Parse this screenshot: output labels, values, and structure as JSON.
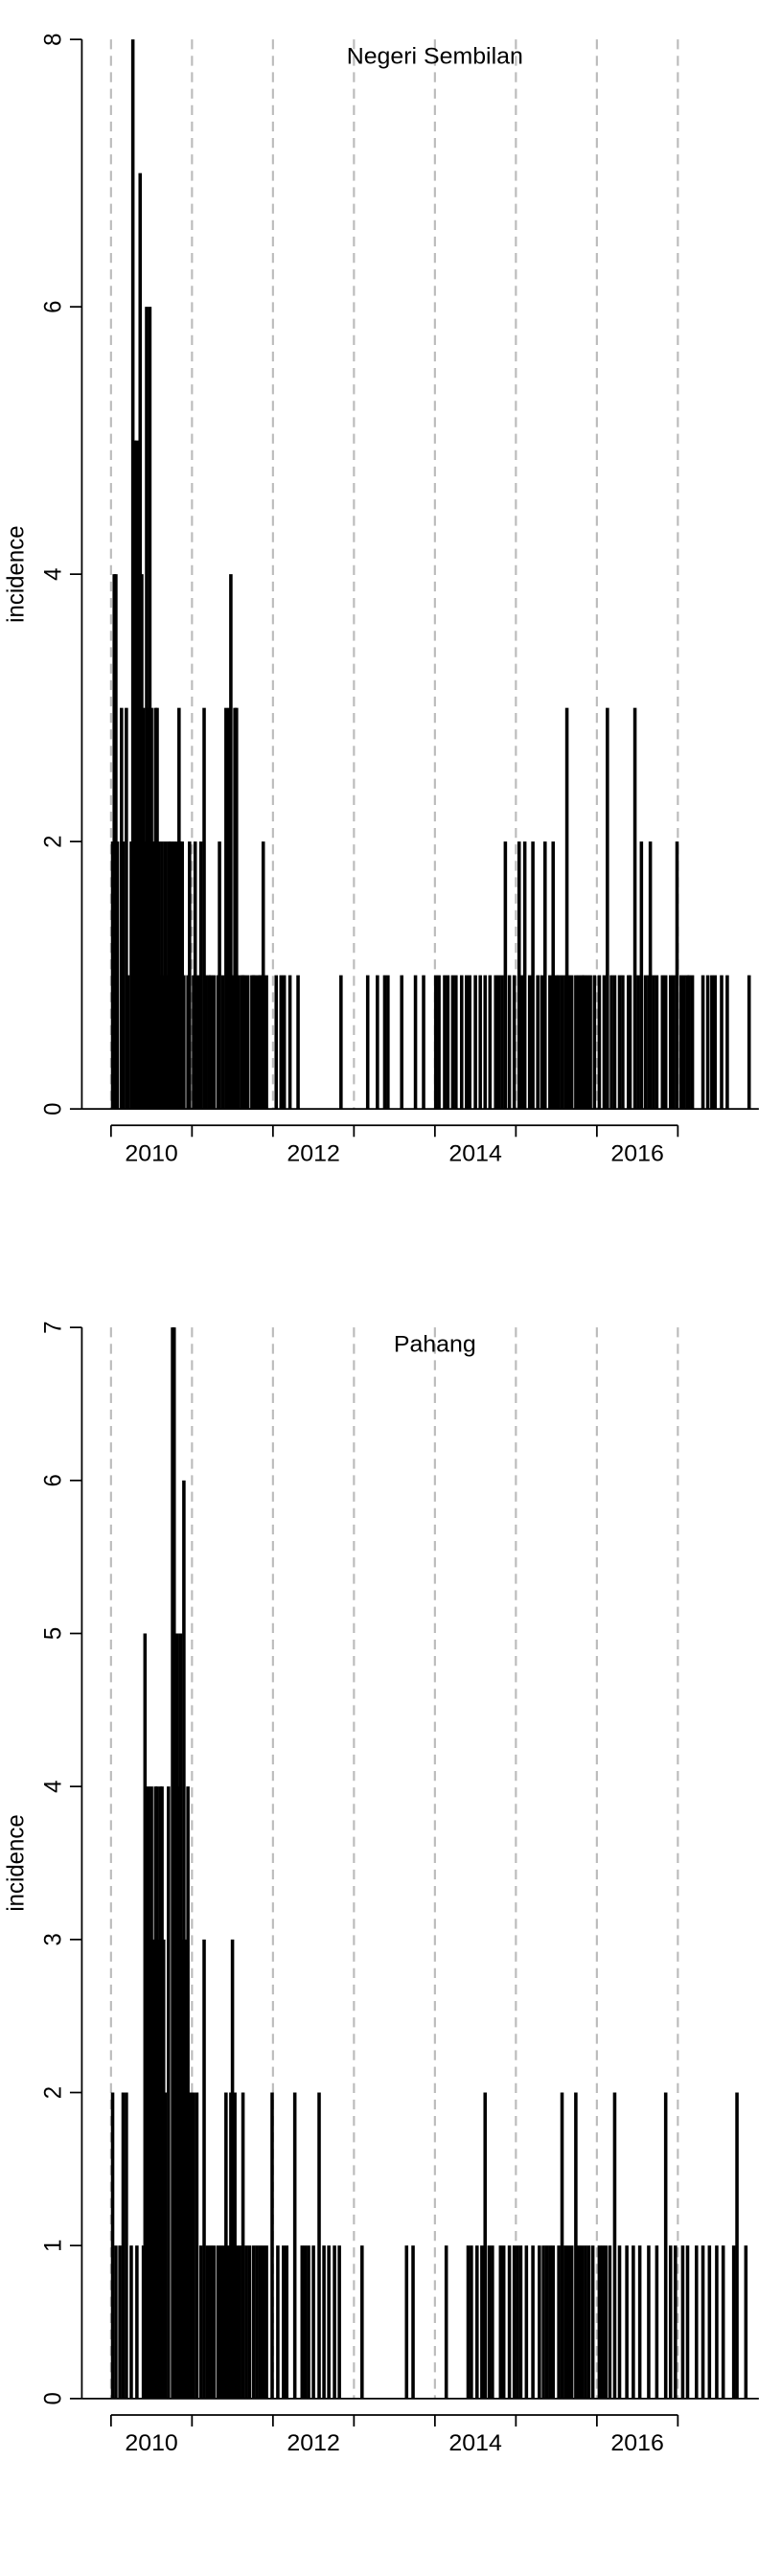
{
  "chart_data": [
    {
      "type": "bar",
      "title": "Negeri Sembilan",
      "ylabel": "incidence",
      "color": "#000000",
      "x": [
        2010.02,
        2010.04,
        2010.06,
        2010.08,
        2010.13,
        2010.15,
        2010.19,
        2010.21,
        2010.25,
        2010.27,
        2010.29,
        2010.32,
        2010.34,
        2010.36,
        2010.38,
        2010.4,
        2010.42,
        2010.44,
        2010.46,
        2010.48,
        2010.5,
        2010.53,
        2010.55,
        2010.57,
        2010.59,
        2010.61,
        2010.63,
        2010.65,
        2010.67,
        2010.69,
        2010.71,
        2010.74,
        2010.78,
        2010.8,
        2010.82,
        2010.84,
        2010.86,
        2010.88,
        2010.9,
        2010.95,
        2010.97,
        2011.02,
        2011.04,
        2011.08,
        2011.11,
        2011.15,
        2011.17,
        2011.21,
        2011.23,
        2011.27,
        2011.32,
        2011.34,
        2011.38,
        2011.42,
        2011.44,
        2011.46,
        2011.48,
        2011.5,
        2011.53,
        2011.55,
        2011.57,
        2011.61,
        2011.63,
        2011.65,
        2011.69,
        2011.74,
        2011.76,
        2011.78,
        2011.82,
        2011.84,
        2011.86,
        2011.88,
        2011.92,
        2012.04,
        2012.1,
        2012.14,
        2012.21,
        2012.31,
        2012.84,
        2013.17,
        2013.29,
        2013.38,
        2013.42,
        2013.59,
        2013.76,
        2013.86,
        2014.01,
        2014.05,
        2014.12,
        2014.16,
        2014.22,
        2014.26,
        2014.33,
        2014.39,
        2014.43,
        2014.5,
        2014.56,
        2014.62,
        2014.68,
        2014.75,
        2014.79,
        2014.83,
        2014.87,
        2014.92,
        2014.98,
        2015.04,
        2015.08,
        2015.11,
        2015.17,
        2015.21,
        2015.27,
        2015.32,
        2015.36,
        2015.42,
        2015.46,
        2015.5,
        2015.53,
        2015.57,
        2015.61,
        2015.63,
        2015.65,
        2015.69,
        2015.74,
        2015.78,
        2015.82,
        2015.84,
        2015.88,
        2015.92,
        2015.97,
        2016.03,
        2016.09,
        2016.13,
        2016.18,
        2016.22,
        2016.28,
        2016.32,
        2016.39,
        2016.41,
        2016.47,
        2016.51,
        2016.55,
        2016.6,
        2016.64,
        2016.66,
        2016.7,
        2016.74,
        2016.81,
        2016.85,
        2016.91,
        2016.95,
        2016.99,
        2017.04,
        2017.08,
        2017.12,
        2017.14,
        2017.18,
        2017.31,
        2017.37,
        2017.42,
        2017.46,
        2017.54,
        2017.61,
        2017.88
      ],
      "values": [
        2,
        4,
        4,
        2,
        3,
        2,
        3,
        1,
        2,
        8,
        5,
        5,
        3,
        7,
        4,
        3,
        2,
        6,
        3,
        6,
        3,
        2,
        3,
        3,
        2,
        1,
        2,
        1,
        2,
        1,
        2,
        2,
        2,
        1,
        2,
        3,
        2,
        2,
        1,
        1,
        2,
        1,
        2,
        1,
        2,
        3,
        1,
        1,
        1,
        1,
        1,
        2,
        1,
        3,
        1,
        3,
        4,
        1,
        3,
        3,
        1,
        1,
        1,
        1,
        1,
        1,
        1,
        1,
        1,
        1,
        1,
        2,
        1,
        1,
        1,
        1,
        1,
        1,
        1,
        1,
        1,
        1,
        1,
        1,
        1,
        1,
        1,
        1,
        1,
        1,
        1,
        1,
        1,
        1,
        1,
        1,
        1,
        1,
        1,
        1,
        1,
        1,
        2,
        1,
        1,
        2,
        1,
        2,
        1,
        2,
        1,
        1,
        2,
        1,
        2,
        1,
        1,
        1,
        1,
        3,
        1,
        1,
        1,
        1,
        1,
        1,
        1,
        1,
        1,
        1,
        1,
        3,
        1,
        1,
        1,
        1,
        1,
        1,
        3,
        1,
        2,
        1,
        1,
        2,
        1,
        1,
        1,
        1,
        1,
        1,
        2,
        1,
        1,
        1,
        1,
        1,
        1,
        1,
        1,
        1,
        1,
        1,
        1
      ],
      "xlim": [
        2009.64,
        2018
      ],
      "ylim": [
        0,
        8
      ],
      "yticks": [
        0,
        2,
        4,
        6,
        8
      ],
      "year_lines": [
        2010,
        2011,
        2012,
        2013,
        2014,
        2015,
        2016,
        2017
      ],
      "xticks": [
        {
          "value": 2010.5,
          "label": "2010"
        },
        {
          "value": 2012.5,
          "label": "2012"
        },
        {
          "value": 2014.5,
          "label": "2014"
        },
        {
          "value": 2016.5,
          "label": "2016"
        }
      ]
    },
    {
      "type": "bar",
      "title": "Pahang",
      "ylabel": "incidence",
      "color": "#000000",
      "x": [
        2010.02,
        2010.06,
        2010.11,
        2010.15,
        2010.19,
        2010.25,
        2010.32,
        2010.4,
        2010.42,
        2010.46,
        2010.48,
        2010.5,
        2010.53,
        2010.55,
        2010.57,
        2010.59,
        2010.61,
        2010.63,
        2010.65,
        2010.67,
        2010.71,
        2010.76,
        2010.78,
        2010.8,
        2010.82,
        2010.84,
        2010.86,
        2010.88,
        2010.9,
        2010.92,
        2010.95,
        2010.97,
        2010.99,
        2011.02,
        2011.06,
        2011.11,
        2011.15,
        2011.19,
        2011.23,
        2011.27,
        2011.32,
        2011.36,
        2011.4,
        2011.42,
        2011.46,
        2011.48,
        2011.5,
        2011.53,
        2011.55,
        2011.59,
        2011.63,
        2011.67,
        2011.71,
        2011.76,
        2011.8,
        2011.84,
        2011.88,
        2011.92,
        2011.99,
        2012.06,
        2012.13,
        2012.17,
        2012.27,
        2012.36,
        2012.4,
        2012.44,
        2012.5,
        2012.57,
        2012.63,
        2012.69,
        2012.76,
        2012.82,
        2013.1,
        2013.65,
        2013.73,
        2014.14,
        2014.41,
        2014.45,
        2014.52,
        2014.58,
        2014.62,
        2014.67,
        2014.71,
        2014.81,
        2014.85,
        2014.92,
        2014.98,
        2015.02,
        2015.06,
        2015.13,
        2015.21,
        2015.29,
        2015.34,
        2015.38,
        2015.42,
        2015.46,
        2015.53,
        2015.57,
        2015.61,
        2015.65,
        2015.69,
        2015.74,
        2015.78,
        2015.82,
        2015.86,
        2015.9,
        2015.95,
        2016.03,
        2016.07,
        2016.11,
        2016.16,
        2016.22,
        2016.28,
        2016.37,
        2016.45,
        2016.53,
        2016.64,
        2016.74,
        2016.85,
        2016.91,
        2016.97,
        2017.06,
        2017.12,
        2017.23,
        2017.31,
        2017.39,
        2017.48,
        2017.56,
        2017.69,
        2017.73,
        2017.84
      ],
      "values": [
        2,
        1,
        1,
        2,
        2,
        1,
        1,
        1,
        5,
        4,
        3,
        4,
        3,
        4,
        4,
        3,
        4,
        4,
        3,
        2,
        4,
        7,
        7,
        5,
        5,
        4,
        5,
        3,
        6,
        3,
        4,
        2,
        2,
        2,
        2,
        1,
        3,
        1,
        1,
        1,
        1,
        1,
        1,
        2,
        1,
        2,
        3,
        2,
        1,
        1,
        2,
        1,
        1,
        1,
        1,
        1,
        1,
        1,
        2,
        1,
        1,
        1,
        2,
        1,
        1,
        1,
        1,
        2,
        1,
        1,
        1,
        1,
        1,
        1,
        1,
        1,
        1,
        1,
        1,
        1,
        2,
        1,
        1,
        1,
        1,
        1,
        1,
        1,
        1,
        1,
        1,
        1,
        1,
        1,
        1,
        1,
        1,
        2,
        1,
        1,
        1,
        2,
        1,
        1,
        1,
        1,
        1,
        1,
        1,
        1,
        1,
        2,
        1,
        1,
        1,
        1,
        1,
        1,
        2,
        1,
        1,
        1,
        1,
        1,
        1,
        1,
        1,
        1,
        1,
        2,
        1
      ],
      "xlim": [
        2009.64,
        2018
      ],
      "ylim": [
        0,
        7
      ],
      "yticks": [
        0,
        1,
        2,
        3,
        4,
        5,
        6,
        7
      ],
      "year_lines": [
        2010,
        2011,
        2012,
        2013,
        2014,
        2015,
        2016,
        2017
      ],
      "xticks": [
        {
          "value": 2010.5,
          "label": "2010"
        },
        {
          "value": 2012.5,
          "label": "2012"
        },
        {
          "value": 2014.5,
          "label": "2014"
        },
        {
          "value": 2016.5,
          "label": "2016"
        }
      ]
    }
  ]
}
